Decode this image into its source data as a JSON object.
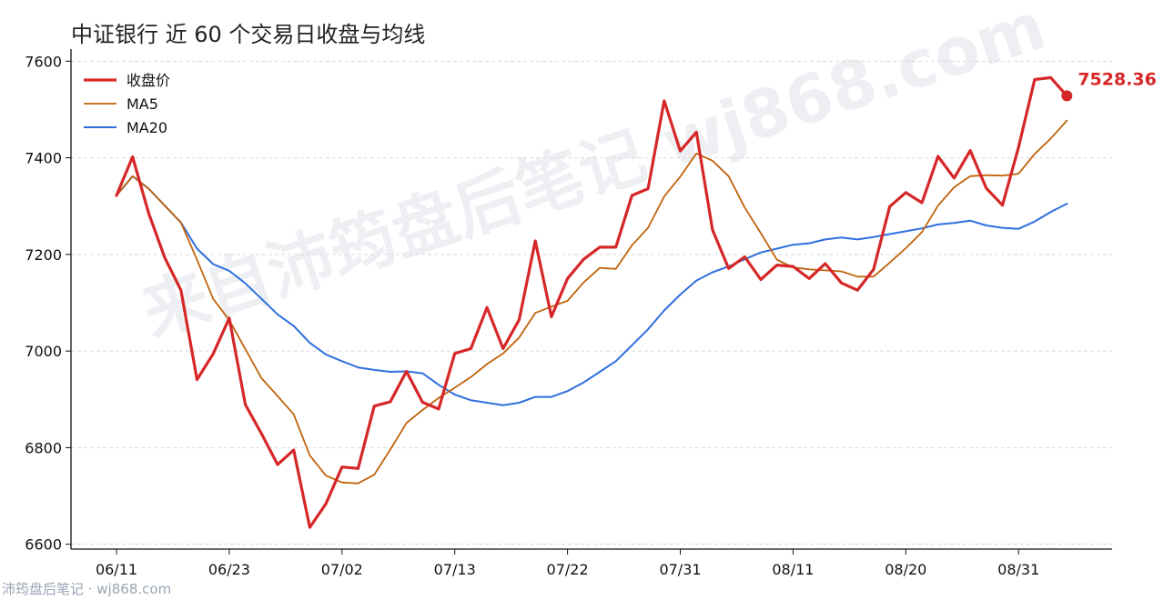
{
  "title": "中证银行 近 60 个交易日收盘与均线",
  "watermark": "来自沛筠盘后笔记 wj868.com",
  "footer": "沛筠盘后笔记 · wj868.com",
  "colors": {
    "close": "#d62728",
    "ma5": "#c0630c",
    "ma20": "#2f6fdd",
    "grid": "#d9d9d9",
    "axis": "#111111"
  },
  "chart_data": {
    "type": "line",
    "ylim": [
      6590,
      7610
    ],
    "yticks": [
      6600,
      6800,
      7000,
      7200,
      7400,
      7600
    ],
    "x_tick_labels": [
      {
        "index": 0,
        "label": "06/11"
      },
      {
        "index": 7,
        "label": "06/23"
      },
      {
        "index": 14,
        "label": "07/02"
      },
      {
        "index": 21,
        "label": "07/13"
      },
      {
        "index": 28,
        "label": "07/22"
      },
      {
        "index": 35,
        "label": "07/31"
      },
      {
        "index": 42,
        "label": "08/11"
      },
      {
        "index": 49,
        "label": "08/20"
      },
      {
        "index": 56,
        "label": "08/31"
      }
    ],
    "legend": {
      "placement": "top-left"
    },
    "last_label": "7528.36",
    "series": [
      {
        "name": "收盘价",
        "values": [
          7322,
          7402,
          7285,
          7193,
          7126,
          6941,
          6994,
          7068,
          6889,
          6829,
          6765,
          6795,
          6635,
          6684,
          6760,
          6757,
          6886,
          6895,
          6958,
          6894,
          6880,
          6995,
          7005,
          7090,
          7005,
          7065,
          7228,
          7071,
          7150,
          7190,
          7215,
          7215,
          7322,
          7336,
          7518,
          7414,
          7453,
          7251,
          7171,
          7195,
          7148,
          7178,
          7175,
          7150,
          7181,
          7141,
          7126,
          7169,
          7299,
          7328,
          7307,
          7403,
          7358,
          7415,
          7337,
          7302,
          7422,
          7562,
          7566,
          7528.36
        ]
      },
      {
        "name": "MA5",
        "values": [
          7322,
          7362,
          7336,
          7301,
          7266,
          7189,
          7108,
          7064,
          7004,
          6944,
          6907,
          6869,
          6784,
          6742,
          6728,
          6726,
          6744,
          6796,
          6851,
          6878,
          6903,
          6924,
          6946,
          6973,
          6995,
          7028,
          7079,
          7092,
          7104,
          7142,
          7172,
          7170,
          7219,
          7255,
          7320,
          7361,
          7409,
          7394,
          7362,
          7297,
          7244,
          7189,
          7173,
          7169,
          7167,
          7165,
          7154,
          7154,
          7183,
          7213,
          7246,
          7301,
          7339,
          7362,
          7364,
          7363,
          7367,
          7408,
          7440,
          7477
        ]
      },
      {
        "name": "MA20",
        "values": [
          7322,
          7362,
          7336,
          7301,
          7266,
          7212,
          7180,
          7166,
          7140,
          7108,
          7076,
          7052,
          7017,
          6993,
          6979,
          6966,
          6961,
          6957,
          6958,
          6954,
          6930,
          6910,
          6898,
          6893,
          6888,
          6893,
          6905,
          6905,
          6917,
          6935,
          6957,
          6979,
          7012,
          7045,
          7084,
          7117,
          7146,
          7163,
          7175,
          7190,
          7204,
          7212,
          7220,
          7223,
          7231,
          7235,
          7231,
          7236,
          7242,
          7248,
          7254,
          7262,
          7265,
          7270,
          7260,
          7255,
          7253,
          7268,
          7288,
          7305
        ]
      }
    ]
  }
}
